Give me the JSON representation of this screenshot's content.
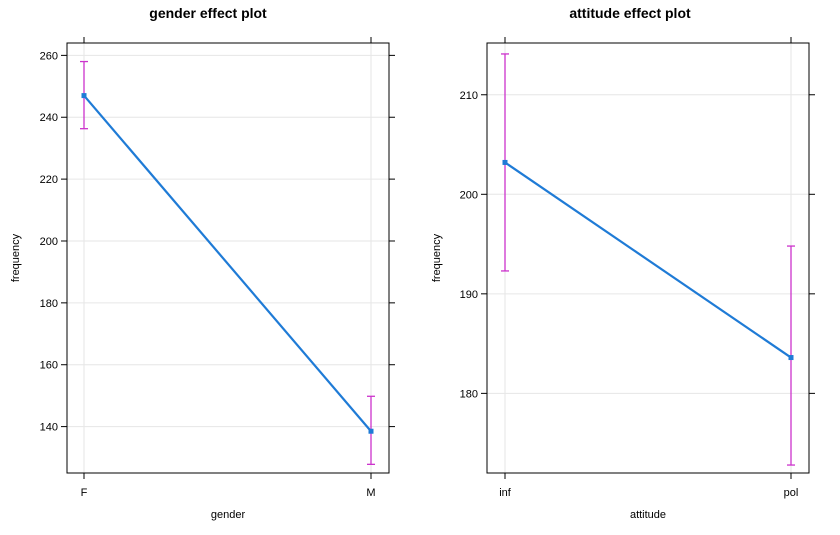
{
  "chart_data": [
    {
      "type": "line",
      "title": "gender effect plot",
      "xlabel": "gender",
      "ylabel": "frequency",
      "categories": [
        "F",
        "M"
      ],
      "values": [
        247,
        138.5
      ],
      "lower": [
        236.3,
        127.8
      ],
      "upper": [
        258,
        149.8
      ],
      "ylim": [
        125,
        264
      ],
      "yticks": [
        140,
        160,
        180,
        200,
        220,
        240,
        260
      ],
      "grid": true,
      "colors": {
        "line": "#1f7bd6",
        "ci": "#cc33cc",
        "grid": "#e6e6e6",
        "axis": "#000000"
      }
    },
    {
      "type": "line",
      "title": "attitude effect plot",
      "xlabel": "attitude",
      "ylabel": "frequency",
      "categories": [
        "inf",
        "pol"
      ],
      "values": [
        203.2,
        183.6
      ],
      "lower": [
        192.3,
        172.8
      ],
      "upper": [
        214.1,
        194.8
      ],
      "ylim": [
        172,
        215.2
      ],
      "yticks": [
        180,
        190,
        200,
        210
      ],
      "grid": true,
      "colors": {
        "line": "#1f7bd6",
        "ci": "#cc33cc",
        "grid": "#e6e6e6",
        "axis": "#000000"
      }
    }
  ]
}
